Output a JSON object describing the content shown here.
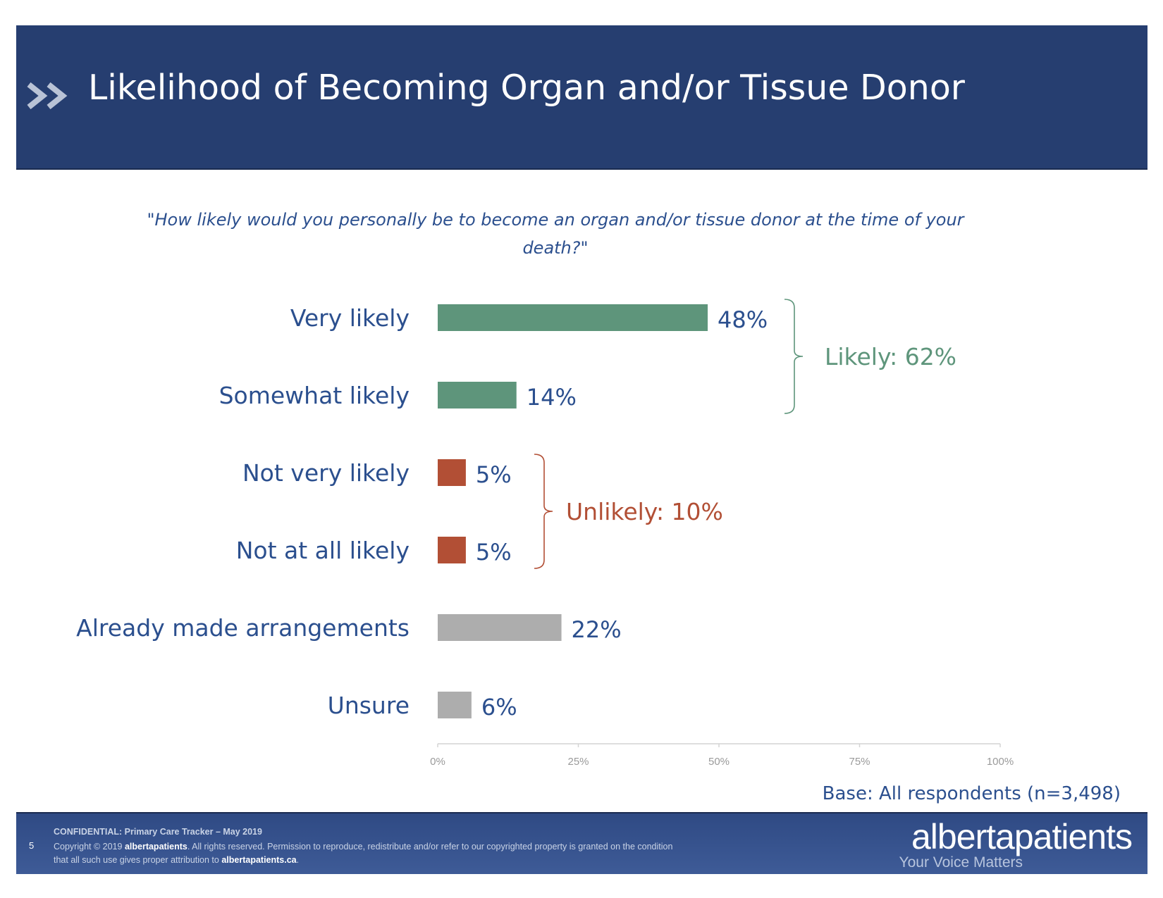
{
  "header": {
    "title": "Likelihood of Becoming Organ and/or Tissue Donor",
    "chevron_icon": "double-chevron-right-icon"
  },
  "question": "\"How likely would you personally be to become an organ and/or tissue donor at the time of your death?\"",
  "chart_data": {
    "type": "bar",
    "orientation": "horizontal",
    "categories": [
      "Very likely",
      "Somewhat likely",
      "Not very likely",
      "Not at all likely",
      "Already made arrangements",
      "Unsure"
    ],
    "values": [
      48,
      14,
      5,
      5,
      22,
      6
    ],
    "value_labels": [
      "48%",
      "14%",
      "5%",
      "5%",
      "22%",
      "6%"
    ],
    "bar_colors": [
      "#5e957b",
      "#5e957b",
      "#b24f35",
      "#b24f35",
      "#adadad",
      "#adadad"
    ],
    "xlim": [
      0,
      100
    ],
    "x_ticks": [
      "0%",
      "25%",
      "50%",
      "75%",
      "100%"
    ],
    "grid": false,
    "groups": [
      {
        "label": "Likely: 62%",
        "from": 0,
        "to": 1,
        "color": "#5e957b"
      },
      {
        "label": "Unlikely: 10%",
        "from": 2,
        "to": 3,
        "color": "#b24f35"
      }
    ]
  },
  "base_note": "Base: All respondents (n=3,498)",
  "footer": {
    "page_number": "5",
    "confidential": "CONFIDENTIAL: Primary Care Tracker – May 2019",
    "copyright_pre": "Copyright © 2019 ",
    "copyright_brand": "albertapatients",
    "copyright_mid": ". All rights reserved. Permission to reproduce, redistribute and/or refer to our copyrighted property is granted on the condition that all such use gives proper attribution to ",
    "copyright_site": "albertapatients.ca",
    "copyright_end": ".",
    "brand": "albertapatients",
    "tagline": "Your Voice Matters"
  }
}
